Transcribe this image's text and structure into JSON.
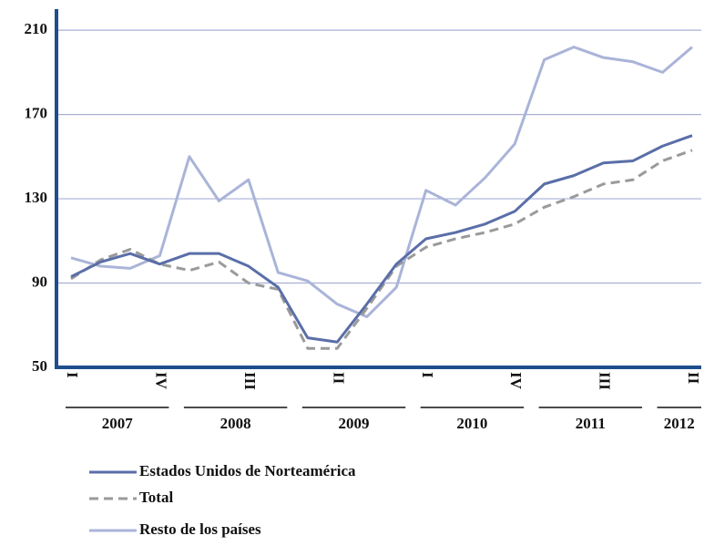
{
  "chart_data": {
    "type": "line",
    "categories": [
      "I",
      null,
      null,
      "IV",
      null,
      null,
      "III",
      null,
      null,
      "II",
      null,
      null,
      "I",
      null,
      null,
      "IV",
      null,
      null,
      "III",
      null,
      null,
      "II"
    ],
    "years": [
      "2007",
      "2008",
      "2009",
      "2010",
      "2011",
      "2012"
    ],
    "series": [
      {
        "name": "Estados Unidos de Norteamérica",
        "color": "#5a6ea8",
        "dashed": false,
        "values": [
          93,
          100,
          104,
          99,
          104,
          104,
          98,
          88,
          64,
          62,
          80,
          99,
          111,
          114,
          118,
          124,
          137,
          141,
          147,
          148,
          155,
          160
        ]
      },
      {
        "name": "Total",
        "color": "#9a9a9a",
        "dashed": true,
        "values": [
          92,
          101,
          106,
          99,
          96,
          100,
          90,
          87,
          59,
          59,
          78,
          98,
          107,
          111,
          114,
          118,
          126,
          131,
          137,
          139,
          148,
          153
        ]
      },
      {
        "name": "Resto de los países",
        "color": "#aab4d8",
        "dashed": false,
        "values": [
          102,
          98,
          97,
          103,
          150,
          129,
          139,
          95,
          91,
          80,
          74,
          88,
          134,
          127,
          140,
          156,
          196,
          202,
          197,
          195,
          190,
          202
        ]
      }
    ],
    "ylim": [
      50,
      220
    ],
    "yticks": [
      50,
      90,
      130,
      170,
      210
    ],
    "grid": true
  }
}
